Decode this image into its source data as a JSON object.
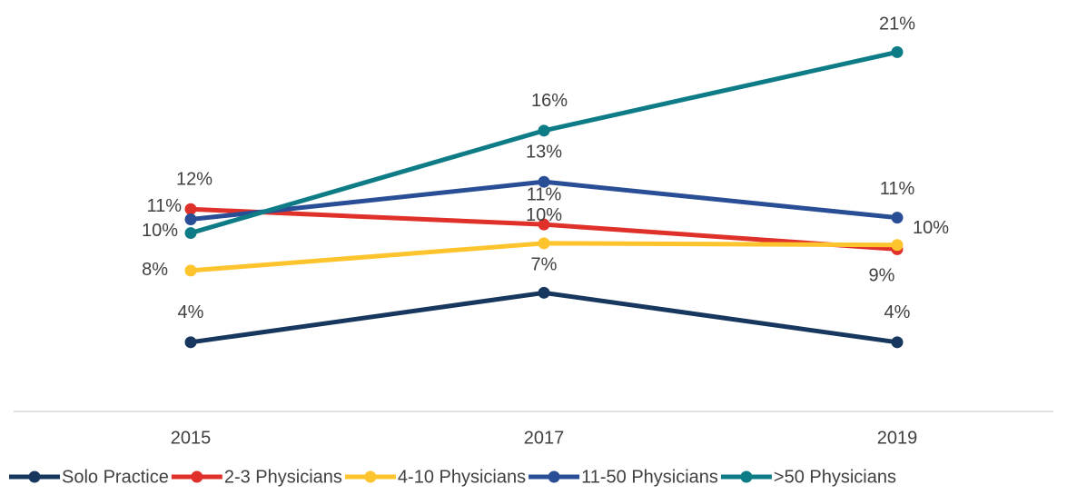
{
  "chart_data": {
    "type": "line",
    "categories": [
      "2015",
      "2017",
      "2019"
    ],
    "ylim": [
      0,
      24
    ],
    "series": [
      {
        "name": "Solo Practice",
        "color": "#17375e",
        "values": [
          4.0,
          6.9,
          4.0
        ],
        "value_labels": [
          "4%",
          "7%",
          "4%"
        ]
      },
      {
        "name": "2-3 Physicians",
        "color": "#e0302a",
        "values": [
          11.8,
          10.9,
          9.45
        ],
        "value_labels": [
          "12%",
          "11%",
          "9%"
        ]
      },
      {
        "name": "4-10 Physicians",
        "color": "#fec42d",
        "values": [
          8.2,
          9.8,
          9.7
        ],
        "value_labels": [
          "8%",
          "10%",
          "10%"
        ]
      },
      {
        "name": "11-50 Physicians",
        "color": "#2a4e96",
        "values": [
          11.2,
          13.4,
          11.3
        ],
        "value_labels": [
          "11%",
          "13%",
          "11%"
        ]
      },
      {
        "name": ">50 Physicians",
        "color": "#0e7c86",
        "values": [
          10.4,
          16.4,
          21.0
        ],
        "value_labels": [
          "10%",
          "16%",
          "21%"
        ]
      }
    ]
  }
}
